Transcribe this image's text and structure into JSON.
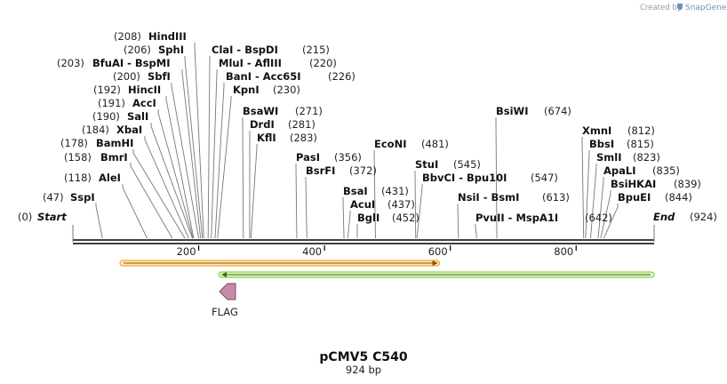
{
  "credit": {
    "created_by": "Created by",
    "brand": "SnapGene"
  },
  "plasmid": {
    "name": "pCMV5 C540",
    "length_label": "924 bp",
    "length": 924
  },
  "ruler": {
    "ticks": [
      {
        "bp": 200,
        "label": "200"
      },
      {
        "bp": 400,
        "label": "400"
      },
      {
        "bp": 600,
        "label": "600"
      },
      {
        "bp": 800,
        "label": "800"
      }
    ]
  },
  "start": {
    "label": "Start",
    "pos": "(0)"
  },
  "end": {
    "label": "End",
    "pos": "(924)"
  },
  "sites_left": [
    {
      "name": "SspI",
      "pos": "(47)",
      "bp": 47
    },
    {
      "name": "AleI",
      "pos": "(118)",
      "bp": 118
    },
    {
      "name": "BmrI",
      "pos": "(158)",
      "bp": 158
    },
    {
      "name": "BamHI",
      "pos": "(178)",
      "bp": 178
    },
    {
      "name": "XbaI",
      "pos": "(184)",
      "bp": 184
    },
    {
      "name": "SalI",
      "pos": "(190)",
      "bp": 190
    },
    {
      "name": "AccI",
      "pos": "(191)",
      "bp": 191
    },
    {
      "name": "HincII",
      "pos": "(192)",
      "bp": 192
    },
    {
      "name": "SbfI",
      "pos": "(200)",
      "bp": 200
    },
    {
      "name": "BfuAI - BspMI",
      "pos": "(203)",
      "bp": 203
    },
    {
      "name": "SphI",
      "pos": "(206)",
      "bp": 206
    },
    {
      "name": "HindIII",
      "pos": "(208)",
      "bp": 208
    }
  ],
  "sites_right": [
    {
      "name": "ClaI - BspDI",
      "pos": "(215)",
      "bp": 215
    },
    {
      "name": "MluI - AflIII",
      "pos": "(220)",
      "bp": 220
    },
    {
      "name": "BanI - Acc65I",
      "pos": "(226)",
      "bp": 226
    },
    {
      "name": "KpnI",
      "pos": "(230)",
      "bp": 230
    },
    {
      "name": "BsaWI",
      "pos": "(271)",
      "bp": 271
    },
    {
      "name": "DrdI",
      "pos": "(281)",
      "bp": 281
    },
    {
      "name": "KflI",
      "pos": "(283)",
      "bp": 283
    },
    {
      "name": "PasI",
      "pos": "(356)",
      "bp": 356
    },
    {
      "name": "BsrFI",
      "pos": "(372)",
      "bp": 372
    },
    {
      "name": "BsaI",
      "pos": "(431)",
      "bp": 431
    },
    {
      "name": "AcuI",
      "pos": "(437)",
      "bp": 437
    },
    {
      "name": "BglI",
      "pos": "(452)",
      "bp": 452
    },
    {
      "name": "EcoNI",
      "pos": "(481)",
      "bp": 481
    },
    {
      "name": "StuI",
      "pos": "(545)",
      "bp": 545
    },
    {
      "name": "BbvCI - Bpu10I",
      "pos": "(547)",
      "bp": 547
    },
    {
      "name": "NsiI - BsmI",
      "pos": "(613)",
      "bp": 613
    },
    {
      "name": "PvuII - MspA1I",
      "pos": "(642)",
      "bp": 642
    },
    {
      "name": "BsiWI",
      "pos": "(674)",
      "bp": 674
    },
    {
      "name": "XmnI",
      "pos": "(812)",
      "bp": 812
    },
    {
      "name": "BbsI",
      "pos": "(815)",
      "bp": 815
    },
    {
      "name": "SmlI",
      "pos": "(823)",
      "bp": 823
    },
    {
      "name": "ApaLI",
      "pos": "(835)",
      "bp": 835
    },
    {
      "name": "BsiHKAI",
      "pos": "(839)",
      "bp": 839
    },
    {
      "name": "BpuEI",
      "pos": "(844)",
      "bp": 844
    }
  ],
  "features": [
    {
      "name": "orange-forward-feature",
      "start": 75,
      "end": 590,
      "direction": "forward",
      "color": "#f5a623"
    },
    {
      "name": "green-reverse-feature",
      "start": 240,
      "end": 924,
      "direction": "reverse",
      "color": "#8ed14b"
    },
    {
      "name": "FLAG",
      "label": "FLAG",
      "start": 240,
      "end": 262,
      "direction": "reverse",
      "color": "#c88aa8"
    }
  ],
  "colors": {
    "backbone": "#000000",
    "lines": "#777777"
  }
}
